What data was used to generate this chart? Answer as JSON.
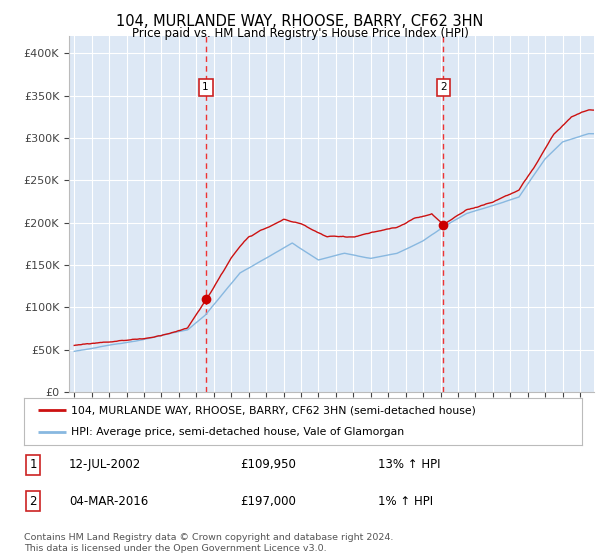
{
  "title": "104, MURLANDE WAY, RHOOSE, BARRY, CF62 3HN",
  "subtitle": "Price paid vs. HM Land Registry's House Price Index (HPI)",
  "background_color": "#ffffff",
  "plot_bg_color": "#dde8f5",
  "grid_color": "#ffffff",
  "sale1_date_x": 2002.53,
  "sale1_price": 109950,
  "sale1_label": "1",
  "sale2_date_x": 2016.17,
  "sale2_price": 197000,
  "sale2_label": "2",
  "vline_color": "#ee3333",
  "dot_color": "#cc0000",
  "red_line_color": "#cc1111",
  "blue_line_color": "#88b8e0",
  "legend_red_label": "104, MURLANDE WAY, RHOOSE, BARRY, CF62 3HN (semi-detached house)",
  "legend_blue_label": "HPI: Average price, semi-detached house, Vale of Glamorgan",
  "table_rows": [
    {
      "num": "1",
      "date": "12-JUL-2002",
      "price": "£109,950",
      "hpi": "13% ↑ HPI"
    },
    {
      "num": "2",
      "date": "04-MAR-2016",
      "price": "£197,000",
      "hpi": "1% ↑ HPI"
    }
  ],
  "footer": "Contains HM Land Registry data © Crown copyright and database right 2024.\nThis data is licensed under the Open Government Licence v3.0.",
  "ylim": [
    0,
    420000
  ],
  "xlim_start": 1994.7,
  "xlim_end": 2024.8,
  "yticks": [
    0,
    50000,
    100000,
    150000,
    200000,
    250000,
    300000,
    350000,
    400000
  ],
  "ytick_labels": [
    "£0",
    "£50K",
    "£100K",
    "£150K",
    "£200K",
    "£250K",
    "£300K",
    "£350K",
    "£400K"
  ]
}
